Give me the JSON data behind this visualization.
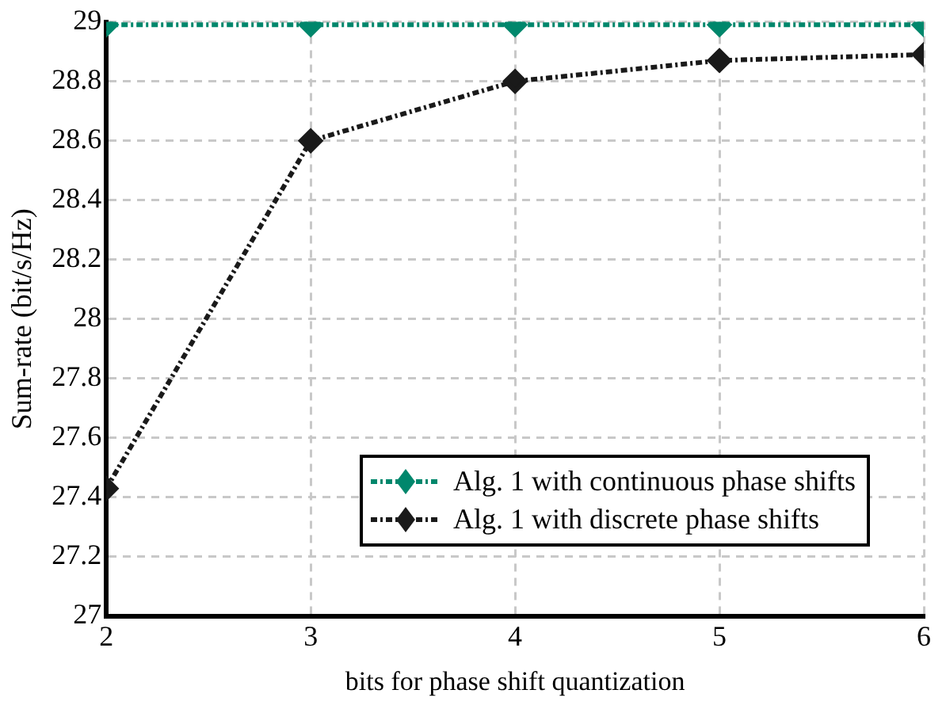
{
  "chart_data": {
    "type": "line",
    "xlabel": "bits for phase shift quantization",
    "ylabel": "Sum-rate (bit/s/Hz)",
    "x": [
      2,
      3,
      4,
      5,
      6
    ],
    "xlim": [
      2,
      6
    ],
    "xticks": [
      2,
      3,
      4,
      5,
      6
    ],
    "ylim": [
      27,
      29
    ],
    "yticks": [
      27,
      27.2,
      27.4,
      27.6,
      27.8,
      28,
      28.2,
      28.4,
      28.6,
      28.8,
      29
    ],
    "series": [
      {
        "name": "Alg. 1 with continuous phase shifts",
        "color": "#00876c",
        "values": [
          28.99,
          28.99,
          28.99,
          28.99,
          28.99
        ]
      },
      {
        "name": "Alg. 1 with discrete phase shifts",
        "color": "#1a1a1a",
        "values": [
          27.43,
          28.6,
          28.8,
          28.87,
          28.89
        ]
      }
    ],
    "grid": true,
    "legend": "bottom right",
    "marker": "diamond",
    "line_style": "dashed"
  }
}
